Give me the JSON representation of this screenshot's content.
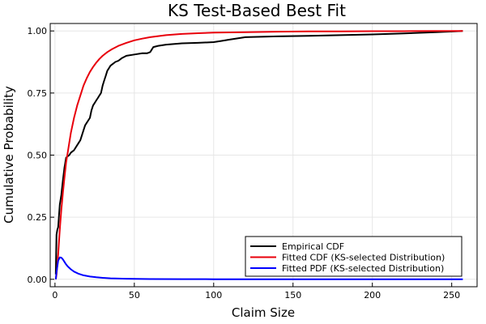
{
  "chart_data": {
    "type": "line",
    "title": "KS Test-Based Best Fit",
    "xlabel": "Claim Size",
    "ylabel": "Cumulative Probability",
    "xlim": [
      -3,
      266
    ],
    "ylim": [
      -0.03,
      1.03
    ],
    "xticks": [
      0,
      50,
      100,
      150,
      200,
      250
    ],
    "yticks": [
      0.0,
      0.25,
      0.5,
      0.75,
      1.0
    ],
    "xtick_labels": [
      "0",
      "50",
      "100",
      "150",
      "200",
      "250"
    ],
    "ytick_labels": [
      "0.00",
      "0.25",
      "0.50",
      "0.75",
      "1.00"
    ],
    "grid": true,
    "legend_position": "bottom-right",
    "series": [
      {
        "name": "Empirical CDF",
        "color": "#000000",
        "x": [
          0.5,
          1,
          1.5,
          2,
          3,
          4,
          5,
          6,
          7,
          8,
          9,
          10,
          12,
          14,
          16,
          18,
          19,
          20,
          21,
          22,
          23,
          24,
          25,
          26,
          27,
          28,
          29,
          30,
          31,
          32,
          33,
          34,
          35,
          36,
          37,
          38,
          40,
          42,
          45,
          50,
          55,
          58,
          60,
          62,
          65,
          70,
          80,
          90,
          100,
          105,
          110,
          115,
          120,
          140,
          160,
          180,
          200,
          220,
          240,
          257
        ],
        "y": [
          0.02,
          0.18,
          0.2,
          0.21,
          0.3,
          0.34,
          0.4,
          0.45,
          0.49,
          0.495,
          0.5,
          0.51,
          0.52,
          0.54,
          0.56,
          0.6,
          0.62,
          0.63,
          0.64,
          0.65,
          0.68,
          0.7,
          0.71,
          0.72,
          0.73,
          0.74,
          0.75,
          0.78,
          0.8,
          0.82,
          0.84,
          0.85,
          0.86,
          0.865,
          0.87,
          0.875,
          0.88,
          0.89,
          0.9,
          0.905,
          0.91,
          0.91,
          0.915,
          0.935,
          0.94,
          0.945,
          0.95,
          0.952,
          0.955,
          0.96,
          0.965,
          0.97,
          0.975,
          0.978,
          0.98,
          0.983,
          0.986,
          0.99,
          0.995,
          1.0
        ]
      },
      {
        "name": "Fitted CDF (KS-selected Distribution)",
        "color": "#e8000b",
        "x": [
          0.5,
          1,
          2,
          3,
          4,
          5,
          6,
          7,
          8,
          10,
          12,
          14,
          16,
          18,
          20,
          22,
          24,
          26,
          28,
          30,
          33,
          36,
          40,
          45,
          50,
          55,
          60,
          70,
          80,
          90,
          100,
          120,
          140,
          160,
          180,
          200,
          220,
          240,
          257
        ],
        "y": [
          0.0,
          0.02,
          0.1,
          0.2,
          0.28,
          0.35,
          0.41,
          0.47,
          0.51,
          0.59,
          0.65,
          0.7,
          0.74,
          0.78,
          0.81,
          0.835,
          0.855,
          0.872,
          0.887,
          0.9,
          0.915,
          0.927,
          0.94,
          0.952,
          0.962,
          0.969,
          0.975,
          0.983,
          0.988,
          0.991,
          0.993,
          0.995,
          0.997,
          0.998,
          0.998,
          0.999,
          0.999,
          1.0,
          1.0
        ]
      },
      {
        "name": "Fitted PDF (KS-selected Distribution)",
        "color": "#0000ff",
        "x": [
          0.5,
          1,
          2,
          3,
          4,
          5,
          6,
          7,
          8,
          10,
          12,
          15,
          18,
          22,
          26,
          30,
          35,
          40,
          45,
          50,
          60,
          80,
          100,
          150,
          200,
          257
        ],
        "y": [
          0.0,
          0.03,
          0.075,
          0.088,
          0.087,
          0.08,
          0.07,
          0.06,
          0.052,
          0.04,
          0.031,
          0.022,
          0.016,
          0.011,
          0.008,
          0.006,
          0.004,
          0.003,
          0.0022,
          0.0016,
          0.001,
          0.0005,
          0.0003,
          0.0001,
          0.0,
          0.0
        ]
      }
    ]
  }
}
